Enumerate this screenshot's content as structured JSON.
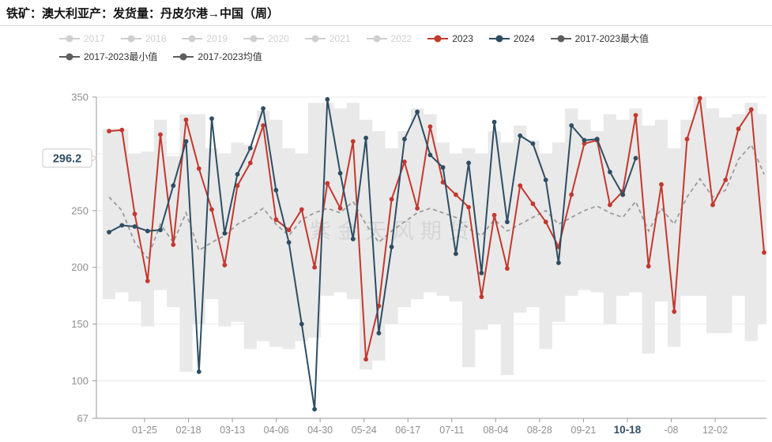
{
  "title": "铁矿：澳大利亚产：发货量：丹皮尔港→中国（周）",
  "watermark": "紫金天风期货",
  "colors": {
    "accent_red": "#c3382f",
    "accent_navy": "#2e4d63",
    "stat_gray": "#5e5e5e",
    "disabled_gray": "#cfcfcf",
    "band_fill": "#e9e9e9",
    "mean_dash": "#9b9b9b",
    "grid": "#e9e9e9",
    "axis": "#999999",
    "tick_text": "#8f8f8f"
  },
  "legend": {
    "row1": [
      {
        "key": "y2017",
        "label": "2017",
        "color": "#cfcfcf",
        "dim": true
      },
      {
        "key": "y2018",
        "label": "2018",
        "color": "#cfcfcf",
        "dim": true
      },
      {
        "key": "y2019",
        "label": "2019",
        "color": "#cfcfcf",
        "dim": true
      },
      {
        "key": "y2020",
        "label": "2020",
        "color": "#cfcfcf",
        "dim": true
      },
      {
        "key": "y2021",
        "label": "2021",
        "color": "#cfcfcf",
        "dim": true
      },
      {
        "key": "y2022",
        "label": "2022",
        "color": "#cfcfcf",
        "dim": true
      },
      {
        "key": "y2023",
        "label": "2023",
        "color": "#c3382f",
        "dim": false
      },
      {
        "key": "y2024",
        "label": "2024",
        "color": "#2e4d63",
        "dim": false
      },
      {
        "key": "max",
        "label": "2017-2023最大值",
        "color": "#5e5e5e",
        "dim": false
      }
    ],
    "row2": [
      {
        "key": "min",
        "label": "2017-2023最小值",
        "color": "#5e5e5e",
        "dim": false
      },
      {
        "key": "mean",
        "label": "2017-2023均值",
        "color": "#5e5e5e",
        "dim": false
      }
    ]
  },
  "chart_data": {
    "type": "line",
    "title": "铁矿：澳大利亚产：发货量：丹皮尔港→中国（周）",
    "ylim": [
      67,
      350
    ],
    "y_tick_values": [
      350,
      250,
      200,
      150,
      100,
      67
    ],
    "grid_values": [
      350,
      300,
      250,
      200,
      150,
      100
    ],
    "x_tick_labels": [
      "01-25",
      "02-18",
      "03-13",
      "04-06",
      "04-30",
      "05-24",
      "06-17",
      "07-11",
      "08-04",
      "08-28",
      "09-21",
      "10-18",
      "-08",
      "12-02"
    ],
    "highlighted_tick_index": 11,
    "current_value_tag": "296.2",
    "legend_position": "top",
    "grid": true,
    "series": [
      {
        "name": "2023",
        "kind": "line",
        "color": "#c3382f",
        "values": [
          320,
          321,
          247,
          188,
          317,
          220,
          330,
          287,
          251,
          202,
          272,
          292,
          325,
          242,
          233,
          251,
          200,
          274,
          252,
          311,
          119,
          166,
          260,
          293,
          252,
          324,
          275,
          264,
          253,
          174,
          246,
          199,
          272,
          256,
          240,
          218,
          264,
          309,
          312,
          255,
          267,
          334,
          201,
          273,
          161,
          313,
          349,
          255,
          277,
          322,
          339,
          213
        ]
      },
      {
        "name": "2024",
        "kind": "line",
        "color": "#2e4d63",
        "values": [
          231,
          237,
          236,
          232,
          233,
          272,
          311,
          108,
          331,
          230,
          282,
          305,
          340,
          268,
          222,
          150,
          75,
          348,
          283,
          225,
          314,
          142,
          218,
          313,
          337,
          299,
          288,
          212,
          292,
          195,
          328,
          240,
          316,
          309,
          277,
          204,
          325,
          312,
          313,
          284,
          264,
          296.2
        ]
      },
      {
        "name": "2017-2023最大值",
        "kind": "band-top",
        "color": "#e9e9e9",
        "values": [
          322,
          322,
          300,
          302,
          330,
          298,
          335,
          335,
          305,
          300,
          310,
          308,
          338,
          330,
          305,
          300,
          345,
          345,
          340,
          345,
          330,
          320,
          305,
          320,
          340,
          335,
          310,
          300,
          305,
          300,
          320,
          310,
          325,
          312,
          300,
          310,
          340,
          330,
          320,
          335,
          330,
          340,
          325,
          330,
          305,
          330,
          350,
          340,
          332,
          335,
          345,
          335
        ]
      },
      {
        "name": "2017-2023最小值",
        "kind": "band-bottom",
        "color": "#e9e9e9",
        "values": [
          172,
          178,
          170,
          148,
          180,
          165,
          108,
          150,
          172,
          148,
          152,
          128,
          135,
          130,
          128,
          135,
          138,
          175,
          178,
          172,
          110,
          118,
          150,
          165,
          172,
          178,
          175,
          170,
          112,
          145,
          150,
          105,
          160,
          165,
          128,
          152,
          175,
          180,
          178,
          150,
          175,
          178,
          124,
          170,
          130,
          175,
          175,
          142,
          142,
          175,
          135,
          150
        ]
      },
      {
        "name": "2017-2023均值",
        "kind": "dashed-line",
        "color": "#9b9b9b",
        "values": [
          262,
          250,
          222,
          208,
          238,
          222,
          248,
          215,
          222,
          228,
          238,
          244,
          252,
          238,
          228,
          242,
          248,
          252,
          248,
          258,
          238,
          222,
          232,
          240,
          248,
          252,
          248,
          244,
          234,
          228,
          242,
          232,
          238,
          244,
          250,
          238,
          244,
          250,
          254,
          248,
          244,
          258,
          232,
          252,
          238,
          262,
          278,
          262,
          268,
          295,
          308,
          282
        ]
      }
    ]
  }
}
